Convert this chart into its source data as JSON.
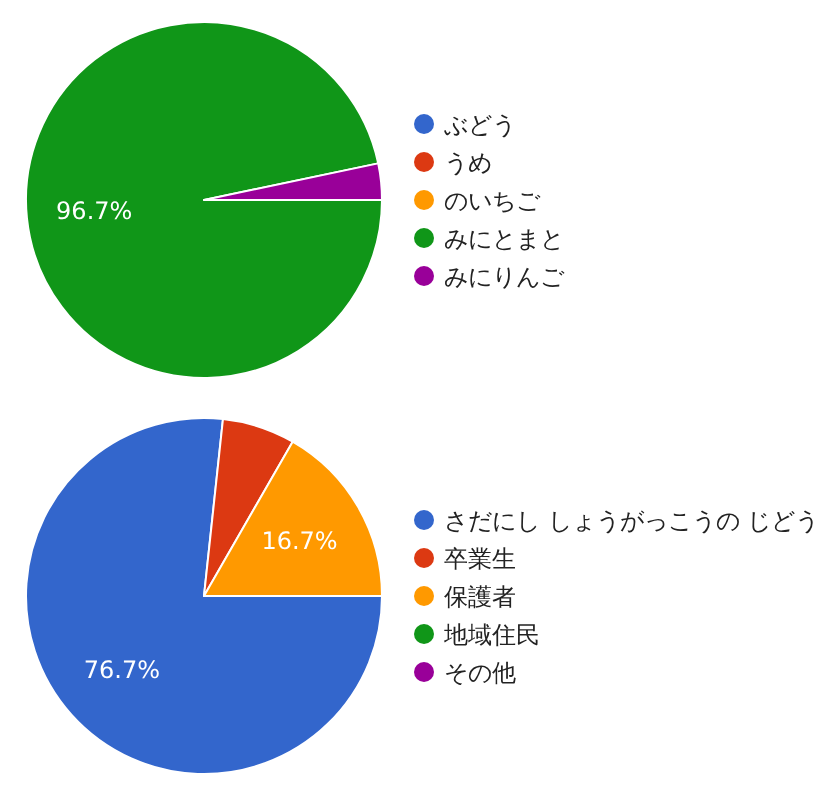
{
  "chart_data": [
    {
      "type": "pie",
      "categories": [
        "ぶどう",
        "うめ",
        "のいちご",
        "みにとまと",
        "みにりんご"
      ],
      "values": [
        0,
        0,
        0,
        96.7,
        3.3
      ],
      "colors": [
        "#3366cc",
        "#dc3912",
        "#ff9900",
        "#109618",
        "#990099"
      ],
      "value_labels": [
        null,
        null,
        null,
        "96.7%",
        null
      ],
      "legend": "right"
    },
    {
      "type": "pie",
      "categories": [
        "さだにし しょうがっこうの じどう",
        "卒業生",
        "保護者",
        "地域住民",
        "その他"
      ],
      "values": [
        76.7,
        6.6,
        16.7,
        0,
        0
      ],
      "colors": [
        "#3366cc",
        "#dc3912",
        "#ff9900",
        "#109618",
        "#990099"
      ],
      "value_labels": [
        "76.7%",
        null,
        "16.7%",
        null,
        null
      ],
      "legend": "right"
    }
  ]
}
